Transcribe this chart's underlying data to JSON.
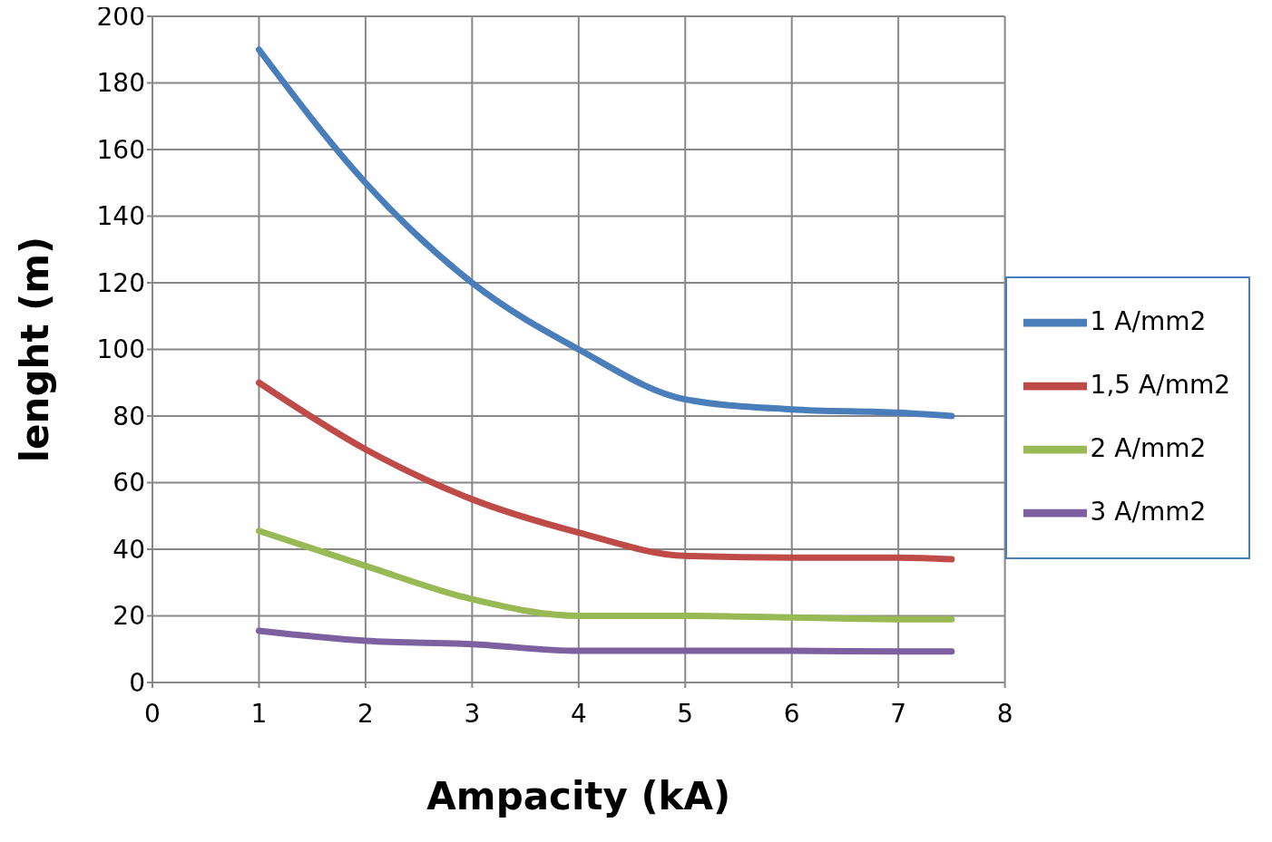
{
  "chart_data": {
    "type": "line",
    "xlabel": "Ampacity (kA)",
    "ylabel": "lenght (m)",
    "x": [
      1,
      2,
      3,
      4,
      5,
      6,
      7,
      7.5
    ],
    "series": [
      {
        "name": "1 A/mm2",
        "color": "#4a7ebb",
        "values": [
          190,
          150,
          120,
          100,
          85,
          82,
          81,
          80
        ]
      },
      {
        "name": "1,5 A/mm2",
        "color": "#be4b48",
        "values": [
          90,
          70,
          55,
          45,
          38,
          37.5,
          37.5,
          37
        ]
      },
      {
        "name": "2 A/mm2",
        "color": "#98b954",
        "values": [
          45.5,
          35,
          25,
          20,
          20,
          19.5,
          19,
          19
        ]
      },
      {
        "name": "3 A/mm2",
        "color": "#7d60a0",
        "values": [
          15.5,
          12.5,
          11.5,
          9.5,
          9.5,
          9.5,
          9.3,
          9.3
        ]
      }
    ],
    "xlim": [
      0,
      8
    ],
    "xticks": [
      0,
      1,
      2,
      3,
      4,
      5,
      6,
      7,
      8
    ],
    "ylim": [
      0,
      200
    ],
    "yticks": [
      0,
      20,
      40,
      60,
      80,
      100,
      120,
      140,
      160,
      180,
      200
    ],
    "grid": true,
    "legend": "right",
    "marker": "none",
    "line_style": "solid"
  }
}
